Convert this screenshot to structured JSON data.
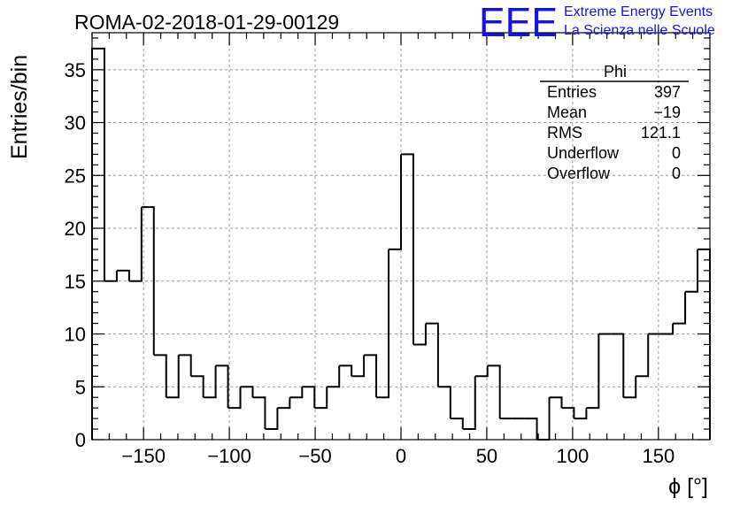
{
  "header": {
    "run_title": "ROMA-02-2018-01-29-00129",
    "logo_text": "EEE",
    "logo_line1": "Extreme Energy Events",
    "logo_line2": "La Scienza nelle Scuole",
    "logo_color": "#1414e6"
  },
  "stats": {
    "title": "Phi",
    "rows": [
      {
        "label": "Entries",
        "value": "397"
      },
      {
        "label": "Mean",
        "value": "−19"
      },
      {
        "label": "RMS",
        "value": "121.1"
      },
      {
        "label": "Underflow",
        "value": "0"
      },
      {
        "label": "Overflow",
        "value": "0"
      }
    ]
  },
  "chart_data": {
    "type": "bar",
    "style": "step-histogram",
    "title": "ROMA-02-2018-01-29-00129",
    "xlabel": "ϕ [°]",
    "ylabel": "Entries/bin",
    "xlim": [
      -180,
      180
    ],
    "ylim": [
      0,
      38.5
    ],
    "bin_width": 7.2,
    "x_ticks": [
      -150,
      -100,
      -50,
      0,
      50,
      100,
      150
    ],
    "x_tick_labels": [
      "−150",
      "−100",
      "−50",
      "0",
      "50",
      "100",
      "150"
    ],
    "y_ticks": [
      0,
      5,
      10,
      15,
      20,
      25,
      30,
      35
    ],
    "y_tick_labels": [
      "0",
      "5",
      "10",
      "15",
      "20",
      "25",
      "30",
      "35"
    ],
    "grid": true,
    "values": [
      37,
      15,
      16,
      15,
      22,
      8,
      4,
      8,
      6,
      4,
      7,
      3,
      5,
      4,
      1,
      3,
      4,
      5,
      3,
      5,
      7,
      6,
      8,
      4,
      18,
      27,
      9,
      11,
      5,
      2,
      1,
      6,
      7,
      2,
      2,
      2,
      0,
      4,
      3,
      2,
      3,
      10,
      10,
      4,
      6,
      10,
      10,
      11,
      14,
      18
    ]
  }
}
